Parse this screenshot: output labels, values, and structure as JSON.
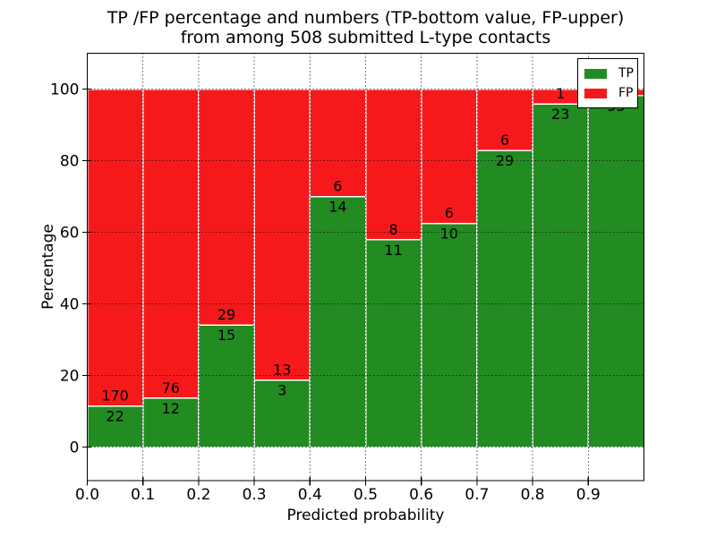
{
  "figure": {
    "title_line1": "TP /FP percentage and numbers (TP-bottom value, FP-upper)",
    "title_line2": "from among 508 submitted L-type contacts"
  },
  "axes": {
    "xlabel": "Predicted probability",
    "ylabel": "Percentage",
    "x_tick_labels": [
      "0.0",
      "0.1",
      "0.2",
      "0.3",
      "0.4",
      "0.5",
      "0.6",
      "0.7",
      "0.8",
      "0.9"
    ],
    "y_tick_labels": [
      "0",
      "20",
      "40",
      "60",
      "80",
      "100"
    ],
    "y_tick_values": [
      0,
      20,
      40,
      60,
      80,
      100
    ],
    "grid_style": "dotted"
  },
  "legend": {
    "position": "upper-right",
    "items": [
      {
        "label": "TP",
        "color": "#228b22"
      },
      {
        "label": "FP",
        "color": "#f6191c"
      }
    ]
  },
  "colors": {
    "tp": "#228b22",
    "fp": "#f6191c",
    "bar_edge": "#ffffff",
    "grid": "#000000",
    "frame": "#000000",
    "text": "#000000",
    "background": "#ffffff"
  },
  "chart_data": {
    "type": "bar",
    "subtype": "stacked-percentage",
    "title": "TP /FP percentage and numbers (TP-bottom value, FP-upper) from among 508 submitted L-type contacts",
    "xlabel": "Predicted probability",
    "ylabel": "Percentage",
    "xlim": [
      0.0,
      1.0
    ],
    "ylim": [
      -9.5,
      110
    ],
    "x_bin_width": 0.1,
    "stack_normalized_to": 100,
    "legend_position": "upper right",
    "grid": true,
    "series_names": [
      "TP",
      "FP"
    ],
    "bins": [
      {
        "x_start": 0.0,
        "tp": 22,
        "fp": 170
      },
      {
        "x_start": 0.1,
        "tp": 12,
        "fp": 76
      },
      {
        "x_start": 0.2,
        "tp": 15,
        "fp": 29
      },
      {
        "x_start": 0.3,
        "tp": 3,
        "fp": 13
      },
      {
        "x_start": 0.4,
        "tp": 14,
        "fp": 6
      },
      {
        "x_start": 0.5,
        "tp": 11,
        "fp": 8
      },
      {
        "x_start": 0.6,
        "tp": 10,
        "fp": 6
      },
      {
        "x_start": 0.7,
        "tp": 29,
        "fp": 6
      },
      {
        "x_start": 0.8,
        "tp": 23,
        "fp": 1
      },
      {
        "x_start": 0.9,
        "tp": 53,
        "fp": 1
      }
    ]
  }
}
